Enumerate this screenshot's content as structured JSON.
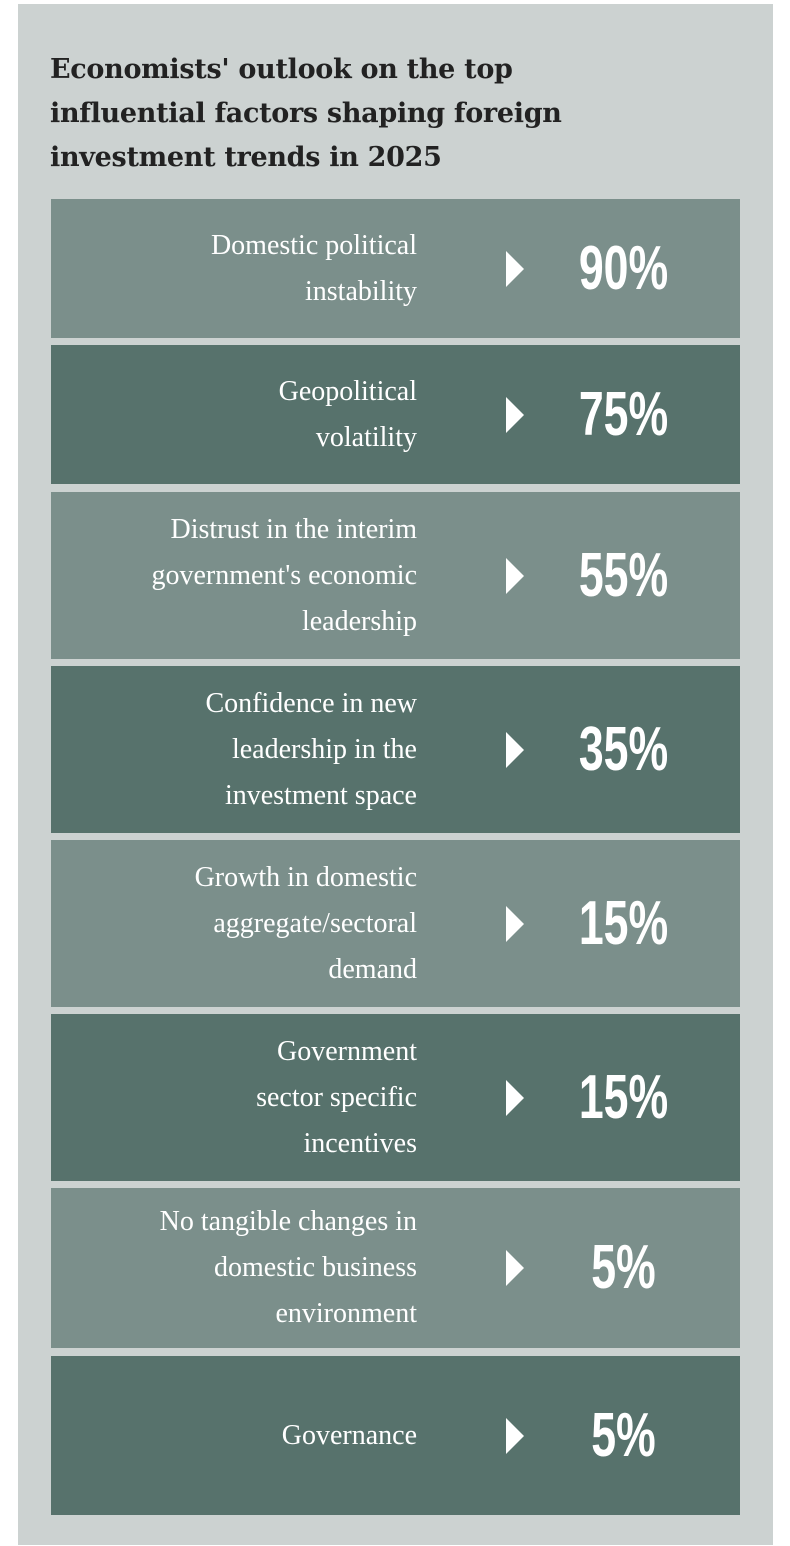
{
  "colors": {
    "panel_background": "#ccd2d1",
    "row_light": "#7b8f8b",
    "row_dark": "#57726c",
    "text_light": "#ffffff",
    "title_text": "#222222"
  },
  "chart_data": {
    "type": "table",
    "title": "Economists' outlook on the top influential factors shaping foreign investment trends in 2025",
    "title_lines": [
      "Economists' outlook on the top",
      "influential factors shaping foreign",
      "investment trends in 2025"
    ],
    "categories": [
      "Domestic political instability",
      "Geopolitical volatility",
      "Distrust in the interim government's economic leadership",
      "Confidence in new leadership in the investment space",
      "Growth in domestic aggregate/sectoral demand",
      "Government sector specific incentives",
      "No tangible changes in domestic business environment",
      "Governance"
    ],
    "values": [
      90,
      75,
      55,
      35,
      15,
      15,
      5,
      5
    ],
    "unit": "%",
    "rows": [
      {
        "factor_lines": "Domestic political\ninstability",
        "value_label": "90%"
      },
      {
        "factor_lines": "Geopolitical\nvolatility",
        "value_label": "75%"
      },
      {
        "factor_lines": "Distrust in the interim\ngovernment's economic\nleadership",
        "value_label": "55%"
      },
      {
        "factor_lines": "Confidence in new\nleadership in the\ninvestment space",
        "value_label": "35%"
      },
      {
        "factor_lines": "Growth in domestic\naggregate/sectoral\ndemand",
        "value_label": "15%"
      },
      {
        "factor_lines": "Government\nsector specific\nincentives",
        "value_label": "15%"
      },
      {
        "factor_lines": "No tangible changes in\ndomestic business\nenvironment",
        "value_label": "5%"
      },
      {
        "factor_lines": "Governance",
        "value_label": "5%"
      }
    ]
  }
}
